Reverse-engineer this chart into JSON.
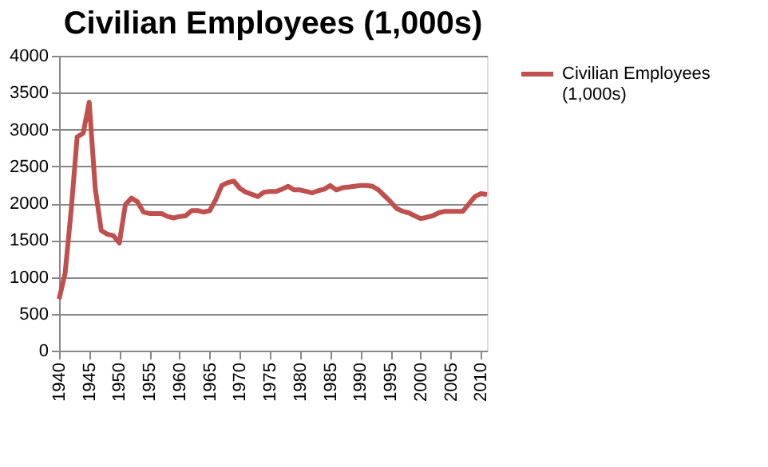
{
  "chart_data": {
    "type": "line",
    "title": "Civilian Employees (1,000s)",
    "x": [
      1940,
      1941,
      1942,
      1943,
      1944,
      1945,
      1946,
      1947,
      1948,
      1949,
      1950,
      1951,
      1952,
      1953,
      1954,
      1955,
      1956,
      1957,
      1958,
      1959,
      1960,
      1961,
      1962,
      1963,
      1964,
      1965,
      1966,
      1967,
      1968,
      1969,
      1970,
      1971,
      1972,
      1973,
      1974,
      1975,
      1976,
      1977,
      1978,
      1979,
      1980,
      1981,
      1982,
      1983,
      1984,
      1985,
      1986,
      1987,
      1988,
      1989,
      1990,
      1991,
      1992,
      1993,
      1994,
      1995,
      1996,
      1997,
      1998,
      1999,
      2000,
      2001,
      2002,
      2003,
      2004,
      2005,
      2006,
      2007,
      2008,
      2009,
      2010,
      2011
    ],
    "series": [
      {
        "name": "Civilian Employees (1,000s)",
        "color": "#c0504d",
        "values": [
          700,
          1050,
          1900,
          2900,
          2950,
          3370,
          2200,
          1630,
          1580,
          1560,
          1460,
          1980,
          2070,
          2020,
          1880,
          1860,
          1860,
          1860,
          1820,
          1800,
          1820,
          1830,
          1900,
          1900,
          1880,
          1900,
          2050,
          2240,
          2280,
          2300,
          2200,
          2150,
          2120,
          2090,
          2150,
          2160,
          2160,
          2190,
          2230,
          2180,
          2180,
          2160,
          2140,
          2170,
          2190,
          2240,
          2180,
          2210,
          2220,
          2230,
          2240,
          2240,
          2230,
          2180,
          2100,
          2020,
          1930,
          1890,
          1870,
          1830,
          1790,
          1810,
          1830,
          1870,
          1890,
          1890,
          1890,
          1890,
          1990,
          2090,
          2130,
          2120
        ]
      }
    ],
    "xlim": [
      1940,
      2011
    ],
    "xticks": [
      1940,
      1945,
      1950,
      1955,
      1960,
      1965,
      1970,
      1975,
      1980,
      1985,
      1990,
      1995,
      2000,
      2005,
      2010
    ],
    "ylim": [
      0,
      4000
    ],
    "yticks": [
      0,
      500,
      1000,
      1500,
      2000,
      2500,
      3000,
      3500,
      4000
    ],
    "grid": "y",
    "legend": "right",
    "marker": "none",
    "line_style": "solid"
  }
}
